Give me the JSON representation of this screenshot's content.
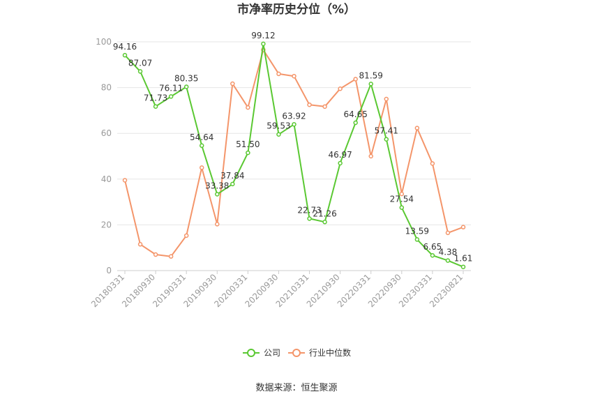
{
  "chart_data": {
    "type": "line",
    "title": "市净率历史分位（%）",
    "xlabel": "",
    "ylabel": "",
    "ylim": [
      0,
      100
    ],
    "yticks": [
      0,
      20,
      40,
      60,
      80,
      100
    ],
    "x": [
      "20180331",
      "20180630",
      "20180930",
      "20181231",
      "20190331",
      "20190630",
      "20190930",
      "20191231",
      "20200331",
      "20200630",
      "20200930",
      "20201231",
      "20210331",
      "20210630",
      "20210930",
      "20211231",
      "20220331",
      "20220630",
      "20220930",
      "20221231",
      "20230331",
      "20230630",
      "20230821"
    ],
    "x_tick_labels": [
      "20180331",
      "20180930",
      "20190331",
      "20190930",
      "20200331",
      "20200930",
      "20210331",
      "20210930",
      "20220331",
      "20220930",
      "20230331",
      "20230821"
    ],
    "series": [
      {
        "name": "公司",
        "color": "#5ac832",
        "values": [
          94.16,
          87.07,
          71.73,
          76.11,
          80.35,
          54.64,
          33.38,
          37.84,
          51.5,
          99.12,
          59.53,
          63.92,
          22.73,
          21.26,
          46.97,
          64.65,
          81.59,
          57.41,
          27.54,
          13.59,
          6.65,
          4.38,
          1.61
        ],
        "labels": [
          "94.16",
          "87.07",
          "71.73",
          "76.11",
          "80.35",
          "54.64",
          "33.38",
          "37.84",
          "51.50",
          "99.12",
          "59.53",
          "63.92",
          "22.73",
          "21.26",
          "46.97",
          "64.65",
          "81.59",
          "57.41",
          "27.54",
          "13.59",
          "6.65",
          "4.38",
          "1.61"
        ]
      },
      {
        "name": "行业中位数",
        "color": "#f4956a",
        "values": [
          39.5,
          11.5,
          7.0,
          6.2,
          15.3,
          45.0,
          20.3,
          81.7,
          71.3,
          96.5,
          86.0,
          85.0,
          72.5,
          71.7,
          79.5,
          83.7,
          50.0,
          75.0,
          33.5,
          62.3,
          46.8,
          16.5,
          19.0
        ]
      }
    ],
    "legend_position": "bottom-center",
    "grid": true
  },
  "source_text": "数据来源：恒生聚源"
}
